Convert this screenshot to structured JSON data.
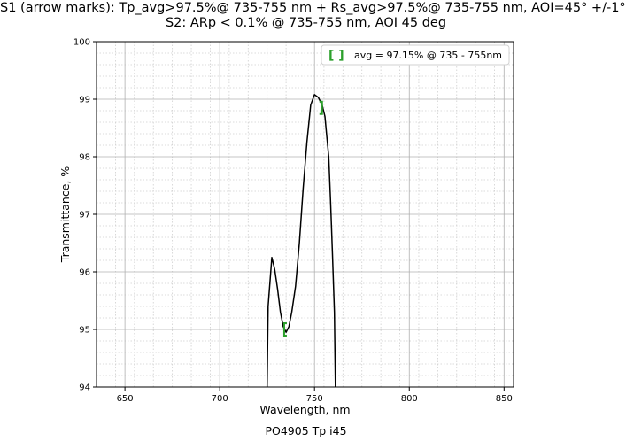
{
  "title_lines": [
    "S1 (arrow marks): Tp_avg>97.5%@ 735-755 nm + Rs_avg>97.5%@ 735-755 nm, AOI=45° +/-1°",
    "S2: ARp < 0.1% @ 735-755 nm, AOI 45 deg"
  ],
  "footer": "PO4905 Tp i45",
  "chart_data": {
    "type": "line",
    "xlabel": "Wavelength, nm",
    "ylabel": "Transmittance, %",
    "xlim": [
      635,
      855
    ],
    "ylim": [
      94,
      100
    ],
    "xticks": [
      650,
      700,
      750,
      800,
      850
    ],
    "yticks": [
      94,
      95,
      96,
      97,
      98,
      99,
      100
    ],
    "grid": true,
    "legend": {
      "placement": "top-right",
      "label": "avg = 97.15% @ 735 - 755nm",
      "marker": "[ ]"
    },
    "series": [
      {
        "color": "#000000",
        "x": [
          725,
          725.5,
          727.5,
          729,
          730.5,
          732,
          733.5,
          735,
          736.5,
          738,
          740,
          742,
          744,
          746,
          748,
          750,
          752,
          754,
          755.5,
          756.5,
          757.5,
          758.5,
          759.5,
          760.5,
          761
        ],
        "y": [
          94.0,
          95.4,
          96.25,
          96.05,
          95.7,
          95.3,
          95.05,
          94.95,
          95.05,
          95.3,
          95.75,
          96.5,
          97.45,
          98.25,
          98.9,
          99.08,
          99.03,
          98.9,
          98.7,
          98.35,
          98.0,
          97.2,
          96.3,
          95.3,
          94.0
        ]
      }
    ],
    "markers": [
      {
        "color": "#2ca02c",
        "x": 734,
        "y": 95.0,
        "side": "left"
      },
      {
        "color": "#2ca02c",
        "x": 754,
        "y": 98.85,
        "side": "right"
      }
    ]
  }
}
